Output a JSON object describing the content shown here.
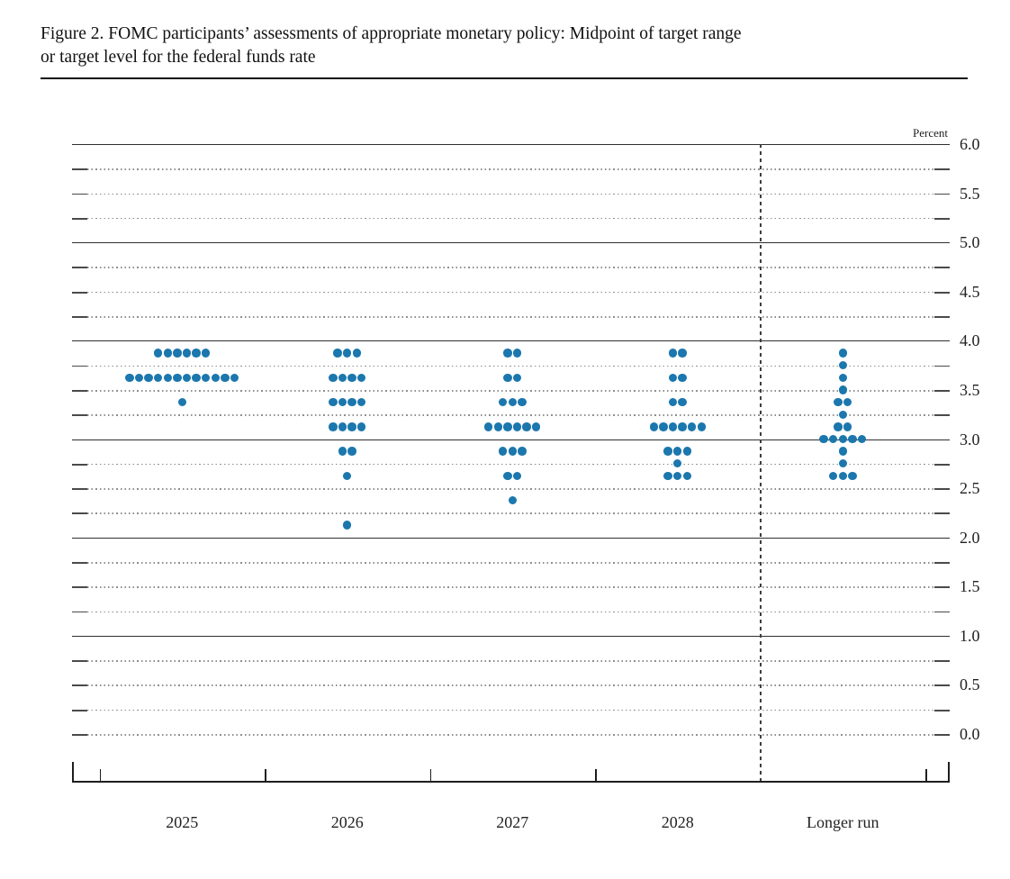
{
  "header": {
    "title_lines": [
      "Figure 2. FOMC participants’ assessments of appropriate monetary policy: Midpoint of target range",
      "or target level for the federal funds rate"
    ]
  },
  "chart_data": {
    "type": "scatter",
    "subtype": "fomc-dot-plot",
    "title": "Figure 2. FOMC participants’ assessments of appropriate monetary policy: Midpoint of target range or target level for the federal funds rate",
    "unit_label": "Percent",
    "ylim": [
      0.0,
      6.0
    ],
    "grid_step": 0.25,
    "y_label_step": 0.5,
    "y_tick_labels": [
      "6.0",
      "5.5",
      "5.0",
      "4.5",
      "4.0",
      "3.5",
      "3.0",
      "2.5",
      "2.0",
      "1.5",
      "1.0",
      "0.5",
      "0.0"
    ],
    "solid_lines": [
      6.0,
      5.0,
      4.0,
      3.0,
      2.0,
      1.0
    ],
    "grid": true,
    "legend_position": "none",
    "dot_color": "#1b77ad",
    "categories": [
      "2025",
      "2026",
      "2027",
      "2028",
      "Longer run"
    ],
    "series": [
      {
        "name": "2025",
        "dots": [
          {
            "rate": 3.875,
            "count": 6
          },
          {
            "rate": 3.625,
            "count": 12
          },
          {
            "rate": 3.375,
            "count": 1
          }
        ]
      },
      {
        "name": "2026",
        "dots": [
          {
            "rate": 3.875,
            "count": 3
          },
          {
            "rate": 3.625,
            "count": 4
          },
          {
            "rate": 3.375,
            "count": 4
          },
          {
            "rate": 3.125,
            "count": 4
          },
          {
            "rate": 2.875,
            "count": 2
          },
          {
            "rate": 2.625,
            "count": 1
          },
          {
            "rate": 2.125,
            "count": 1
          }
        ]
      },
      {
        "name": "2027",
        "dots": [
          {
            "rate": 3.875,
            "count": 2
          },
          {
            "rate": 3.625,
            "count": 2
          },
          {
            "rate": 3.375,
            "count": 3
          },
          {
            "rate": 3.125,
            "count": 6
          },
          {
            "rate": 2.875,
            "count": 3
          },
          {
            "rate": 2.625,
            "count": 2
          },
          {
            "rate": 2.375,
            "count": 1
          }
        ]
      },
      {
        "name": "2028",
        "dots": [
          {
            "rate": 3.875,
            "count": 2
          },
          {
            "rate": 3.625,
            "count": 2
          },
          {
            "rate": 3.375,
            "count": 2
          },
          {
            "rate": 3.125,
            "count": 6
          },
          {
            "rate": 2.875,
            "count": 3
          },
          {
            "rate": 2.75,
            "count": 1
          },
          {
            "rate": 2.625,
            "count": 3
          }
        ]
      },
      {
        "name": "Longer run",
        "dots": [
          {
            "rate": 3.875,
            "count": 1
          },
          {
            "rate": 3.75,
            "count": 1
          },
          {
            "rate": 3.625,
            "count": 1
          },
          {
            "rate": 3.5,
            "count": 1
          },
          {
            "rate": 3.375,
            "count": 2
          },
          {
            "rate": 3.25,
            "count": 1
          },
          {
            "rate": 3.125,
            "count": 2
          },
          {
            "rate": 3.0,
            "count": 5
          },
          {
            "rate": 2.875,
            "count": 1
          },
          {
            "rate": 2.75,
            "count": 1
          },
          {
            "rate": 2.625,
            "count": 3
          }
        ]
      }
    ]
  }
}
